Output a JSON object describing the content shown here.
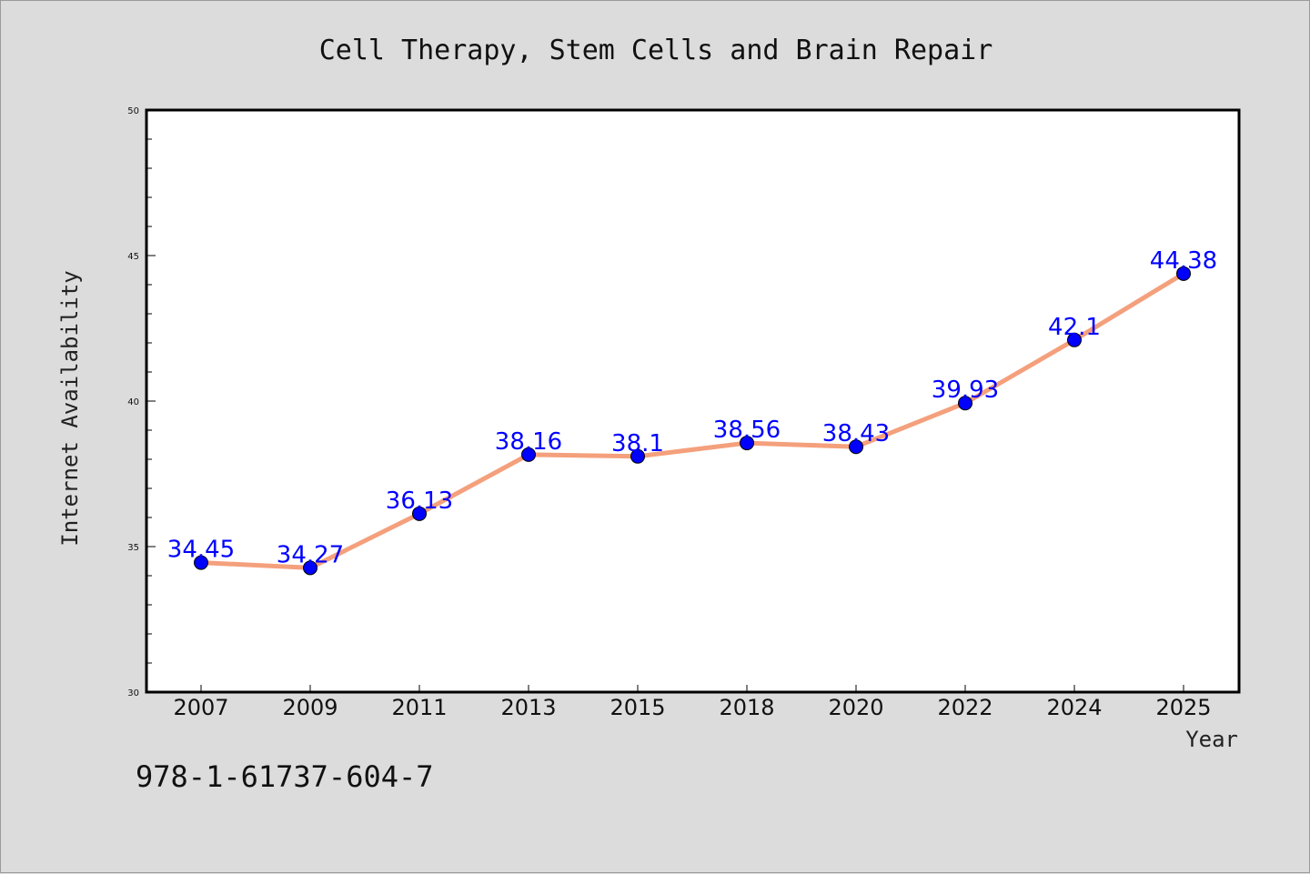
{
  "chart_data": {
    "type": "line",
    "title": "Cell Therapy, Stem Cells and Brain Repair",
    "xlabel": "Year",
    "ylabel": "Internet Availability",
    "categories": [
      "2007",
      "2009",
      "2011",
      "2013",
      "2015",
      "2018",
      "2020",
      "2022",
      "2024",
      "2025"
    ],
    "values": [
      34.45,
      34.27,
      36.13,
      38.16,
      38.1,
      38.56,
      38.43,
      39.93,
      42.1,
      44.38
    ],
    "data_labels": [
      "34.45",
      "34.27",
      "36.13",
      "38.16",
      "38.1",
      "38.56",
      "38.43",
      "39.93",
      "42.1",
      "44.38"
    ],
    "ylim": [
      30,
      50
    ],
    "yticks": [
      "30",
      "35",
      "40",
      "45",
      "50"
    ],
    "grid": false,
    "line_color": "#f4a07c",
    "marker_color": "#0000ff",
    "label_color": "#0000ff"
  },
  "footnote": "978-1-61737-604-7"
}
